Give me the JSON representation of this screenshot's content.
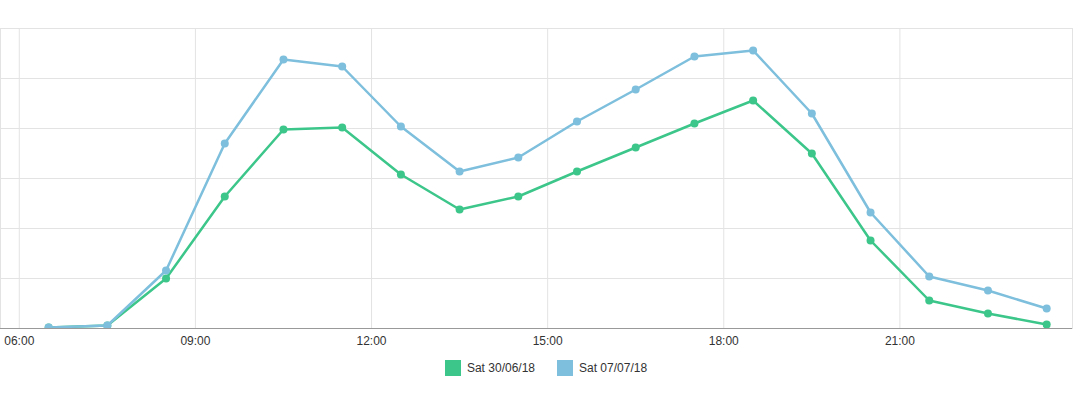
{
  "chart_data": {
    "type": "line",
    "x": [
      6.5,
      7.5,
      8.5,
      9.5,
      10.5,
      11.5,
      12.5,
      13.5,
      14.5,
      15.5,
      16.5,
      17.5,
      18.5,
      19.5,
      20.5,
      21.5,
      22.5,
      23.5
    ],
    "series": [
      {
        "name": "Sat 30/06/18",
        "color": "#3cc68a",
        "marker": "circle",
        "values": [
          0.02,
          0.06,
          1.0,
          2.64,
          3.98,
          4.02,
          3.08,
          2.38,
          2.64,
          3.14,
          3.62,
          4.1,
          4.56,
          3.5,
          1.76,
          0.56,
          0.3,
          0.08
        ]
      },
      {
        "name": "Sat 07/07/18",
        "color": "#7dbfdc",
        "marker": "circle",
        "values": [
          0.02,
          0.06,
          1.16,
          3.7,
          5.38,
          5.24,
          4.04,
          3.14,
          3.42,
          4.14,
          4.78,
          5.44,
          5.56,
          4.3,
          2.32,
          1.04,
          0.76,
          0.4
        ]
      }
    ],
    "xlim": [
      5.68,
      23.94
    ],
    "xticks": [
      {
        "value": 6,
        "label": "06:00"
      },
      {
        "value": 9,
        "label": "09:00"
      },
      {
        "value": 12,
        "label": "12:00"
      },
      {
        "value": 15,
        "label": "15:00"
      },
      {
        "value": 18,
        "label": "18:00"
      },
      {
        "value": 21,
        "label": "21:00"
      }
    ],
    "ylim": [
      0,
      6
    ],
    "yticks": [
      0,
      1,
      2,
      3,
      4,
      5,
      6
    ],
    "grid": true,
    "tick_labels": "x",
    "legend": "bottom"
  }
}
